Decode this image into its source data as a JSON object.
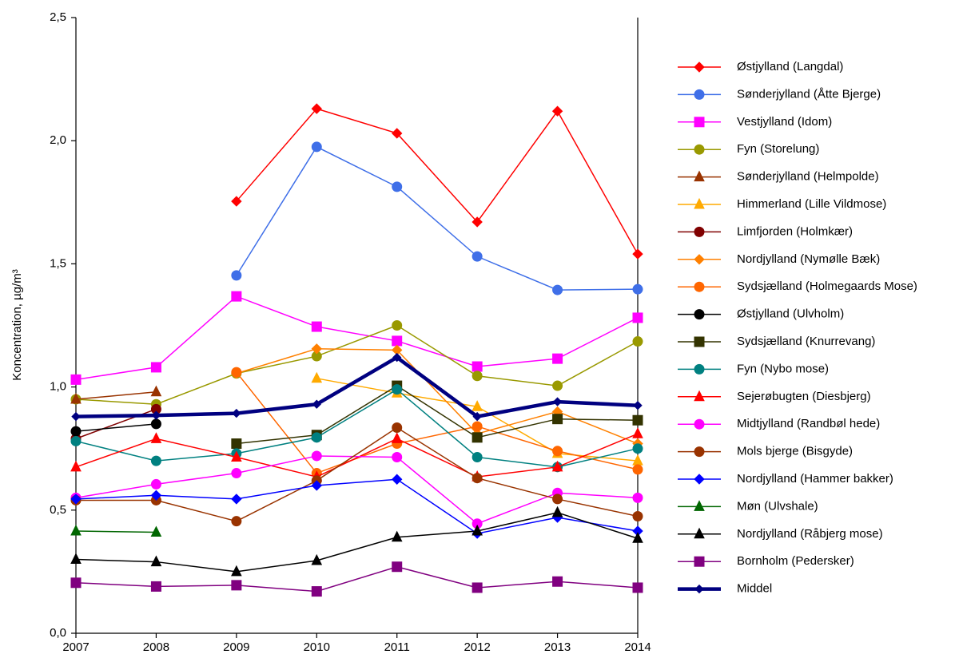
{
  "chart_data": {
    "type": "line",
    "y_label": "Koncentration, µg/m³",
    "categories": [
      "2007",
      "2008",
      "2009",
      "2010",
      "2011",
      "2012",
      "2013",
      "2014"
    ],
    "ylim": [
      0,
      2.5
    ],
    "yticks": [
      {
        "value": 0,
        "label": "0,0"
      },
      {
        "value": 0.5,
        "label": "0,5"
      },
      {
        "value": 1,
        "label": "1,0"
      },
      {
        "value": 1.5,
        "label": "1,5"
      },
      {
        "value": 2,
        "label": "2,0"
      },
      {
        "value": 2.5,
        "label": "2,5"
      }
    ],
    "series": [
      {
        "name": "Østjylland (Langdal)",
        "color": "#ff0000",
        "marker": "diamond",
        "values": [
          null,
          null,
          1.754,
          2.13,
          2.03,
          1.67,
          2.12,
          1.54
        ]
      },
      {
        "name": "Sønderjylland (Åtte Bjerge)",
        "color": "#3f6fe8",
        "marker": "circle",
        "values": [
          null,
          null,
          1.453,
          1.975,
          1.813,
          1.53,
          1.394,
          1.397
        ]
      },
      {
        "name": "Vestjylland (Idom)",
        "color": "#ff00ff",
        "marker": "square",
        "values": [
          1.03,
          1.08,
          1.368,
          1.245,
          1.187,
          1.083,
          1.115,
          1.281
        ]
      },
      {
        "name": "Fyn (Storelung)",
        "color": "#999900",
        "marker": "circle",
        "values": [
          0.95,
          0.93,
          1.055,
          1.125,
          1.25,
          1.045,
          1.005,
          1.185
        ]
      },
      {
        "name": "Sønderjylland (Helmpolde)",
        "color": "#993300",
        "marker": "triangle",
        "values": [
          0.95,
          0.98,
          null,
          null,
          null,
          null,
          null,
          null
        ]
      },
      {
        "name": "Himmerland (Lille Vildmose)",
        "color": "#ffaa00",
        "marker": "triangle",
        "values": [
          null,
          null,
          null,
          1.035,
          0.975,
          0.92,
          0.73,
          0.7
        ]
      },
      {
        "name": "Limfjorden (Holmkær)",
        "color": "#800000",
        "marker": "circle",
        "values": [
          0.79,
          0.91,
          null,
          null,
          null,
          null,
          null,
          null
        ]
      },
      {
        "name": "Nordjylland (Nymølle Bæk)",
        "color": "#ff8000",
        "marker": "diamond",
        "values": [
          null,
          null,
          1.055,
          1.155,
          1.15,
          0.81,
          0.9,
          0.77
        ]
      },
      {
        "name": "Sydsjælland (Holmegaards Mose)",
        "color": "#ff6600",
        "marker": "circle",
        "values": [
          null,
          null,
          1.06,
          0.65,
          0.77,
          0.84,
          0.74,
          0.665
        ]
      },
      {
        "name": "Østjylland (Ulvholm)",
        "color": "#000000",
        "marker": "circle",
        "values": [
          0.82,
          0.85,
          null,
          null,
          null,
          null,
          null,
          null
        ]
      },
      {
        "name": "Sydsjælland (Knurrevang)",
        "color": "#333300",
        "marker": "square",
        "values": [
          null,
          null,
          0.77,
          0.805,
          1.005,
          0.795,
          0.87,
          0.865
        ]
      },
      {
        "name": "Fyn (Nybo mose)",
        "color": "#008080",
        "marker": "circle",
        "values": [
          0.78,
          0.7,
          0.73,
          0.795,
          0.99,
          0.715,
          0.675,
          0.75
        ]
      },
      {
        "name": "Sejerøbugten (Diesbjerg)",
        "color": "#ff0000",
        "marker": "triangle",
        "values": [
          0.675,
          0.79,
          0.715,
          0.635,
          0.79,
          0.635,
          0.675,
          0.81
        ]
      },
      {
        "name": "Midtjylland (Randbøl hede)",
        "color": "#ff00ff",
        "marker": "circle",
        "values": [
          0.55,
          0.605,
          0.65,
          0.72,
          0.715,
          0.445,
          0.57,
          0.55
        ]
      },
      {
        "name": "Mols bjerge (Bisgyde)",
        "color": "#993300",
        "marker": "circle",
        "values": [
          0.54,
          0.54,
          0.455,
          0.62,
          0.835,
          0.63,
          0.545,
          0.475
        ]
      },
      {
        "name": "Nordjylland (Hammer bakker)",
        "color": "#0000ff",
        "marker": "diamond",
        "values": [
          0.545,
          0.56,
          0.545,
          0.6,
          0.625,
          0.405,
          0.47,
          0.415
        ]
      },
      {
        "name": "Møn (Ulvshale)",
        "color": "#006600",
        "marker": "triangle",
        "values": [
          0.415,
          0.41,
          null,
          null,
          null,
          null,
          null,
          null
        ]
      },
      {
        "name": "Nordjylland (Råbjerg mose)",
        "color": "#000000",
        "marker": "triangle",
        "values": [
          0.3,
          0.29,
          0.25,
          0.295,
          0.39,
          0.415,
          0.49,
          0.385
        ]
      },
      {
        "name": "Bornholm (Pedersker)",
        "color": "#800080",
        "marker": "square",
        "values": [
          0.205,
          0.19,
          0.195,
          0.17,
          0.27,
          0.185,
          0.21,
          0.185
        ]
      },
      {
        "name": "Middel",
        "color": "#000080",
        "marker": "diamond",
        "bold": true,
        "values": [
          0.88,
          0.885,
          0.893,
          0.93,
          1.12,
          0.88,
          0.94,
          0.925
        ]
      }
    ]
  }
}
